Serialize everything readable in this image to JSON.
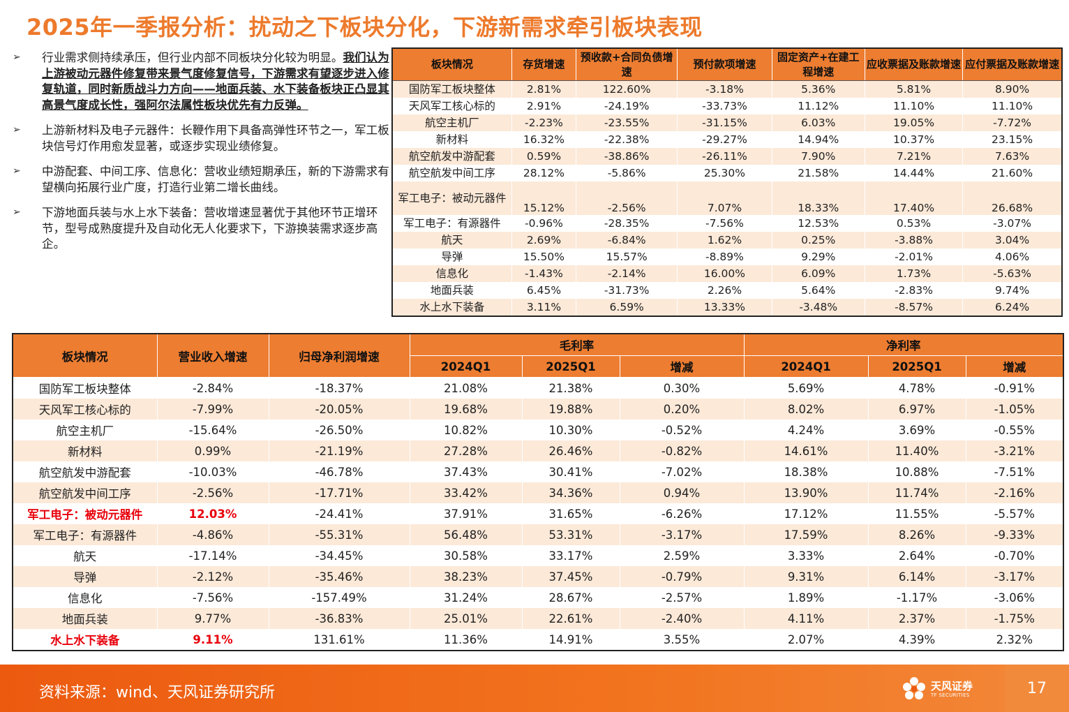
{
  "title": "2025年一季报分析：扰动之下板块分化，下游新需求牵引板块表现",
  "bullets": [
    {
      "marker": "➢",
      "text": "行业需求侧持续承压，但行业内部不同板块分化较为明显。",
      "bold": "我们认为上游被动元器件修复带来景气度修复信号，下游需求有望逐步进入修复轨道，同时新质战斗力方向——地面兵装、水下装备板块正凸显其高景气度成长性，强阿尔法属性板块优先有力反弹。"
    },
    {
      "marker": "➢",
      "text": "上游新材料及电子元器件：长鞭作用下具备高弹性环节之一，军工板块信号灯作用愈发显著，或逐步实现业绩修复。"
    },
    {
      "marker": "➢",
      "text": "中游配套、中间工序、信息化：营收业绩短期承压，新的下游需求有望横向拓展行业广度，打造行业第二增长曲线。"
    },
    {
      "marker": "➢",
      "text": "下游地面兵装与水上水下装备：营收增速显著优于其他环节正增环节，型号成熟度提升及自动化无人化要求下，下游换装需求逐步高企。"
    }
  ],
  "table1": {
    "headers": [
      "板块情况",
      "存货增速",
      "预收款+合同负债增速",
      "预付款项增速",
      "固定资产+在建工程增速",
      "应收票据及账款增速",
      "应付票据及账款增速"
    ],
    "rows": [
      [
        "国防军工板块整体",
        "2.81%",
        "122.60%",
        "-3.18%",
        "5.36%",
        "5.81%",
        "8.90%"
      ],
      [
        "天风军工核心标的",
        "2.91%",
        "-24.19%",
        "-33.73%",
        "11.12%",
        "11.10%",
        "11.10%"
      ],
      [
        "航空主机厂",
        "-2.23%",
        "-23.55%",
        "-31.15%",
        "6.03%",
        "19.05%",
        "-7.72%"
      ],
      [
        "新材料",
        "16.32%",
        "-22.38%",
        "-29.27%",
        "14.94%",
        "10.37%",
        "23.15%"
      ],
      [
        "航空航发中游配套",
        "0.59%",
        "-38.86%",
        "-26.11%",
        "7.90%",
        "7.21%",
        "7.63%"
      ],
      [
        "航空航发中间工序",
        "28.12%",
        "-5.86%",
        "25.30%",
        "21.58%",
        "14.44%",
        "21.60%"
      ],
      [
        "军工电子：被动元器件",
        "15.12%",
        "-2.56%",
        "7.07%",
        "18.33%",
        "17.40%",
        "26.68%"
      ],
      [
        "军工电子：有源器件",
        "-0.96%",
        "-28.35%",
        "-7.56%",
        "12.53%",
        "0.53%",
        "-3.07%"
      ],
      [
        "航天",
        "2.69%",
        "-6.84%",
        "1.62%",
        "0.25%",
        "-3.88%",
        "3.04%"
      ],
      [
        "导弹",
        "15.50%",
        "15.57%",
        "-8.89%",
        "9.29%",
        "-2.01%",
        "4.06%"
      ],
      [
        "信息化",
        "-1.43%",
        "-2.14%",
        "16.00%",
        "6.09%",
        "1.73%",
        "-5.63%"
      ],
      [
        "地面兵装",
        "6.45%",
        "-31.73%",
        "2.26%",
        "5.64%",
        "-2.83%",
        "9.74%"
      ],
      [
        "水上水下装备",
        "3.11%",
        "6.59%",
        "13.33%",
        "-3.48%",
        "-8.57%",
        "6.24%"
      ]
    ]
  },
  "table2": {
    "headers": {
      "sector": "板块情况",
      "revenue": "营业收入增速",
      "profit": "归母净利润增速",
      "gross_margin": "毛利率",
      "net_margin": "净利率",
      "sub": [
        "2024Q1",
        "2025Q1",
        "增减",
        "2024Q1",
        "2025Q1",
        "增减"
      ]
    },
    "rows": [
      [
        "国防军工板块整体",
        "-2.84%",
        "-18.37%",
        "21.08%",
        "21.38%",
        "0.30%",
        "5.69%",
        "4.78%",
        "-0.91%"
      ],
      [
        "天风军工核心标的",
        "-7.99%",
        "-20.05%",
        "19.68%",
        "19.88%",
        "0.20%",
        "8.02%",
        "6.97%",
        "-1.05%"
      ],
      [
        "航空主机厂",
        "-15.64%",
        "-26.50%",
        "10.82%",
        "10.30%",
        "-0.52%",
        "4.24%",
        "3.69%",
        "-0.55%"
      ],
      [
        "新材料",
        "0.99%",
        "-21.19%",
        "27.28%",
        "26.46%",
        "-0.82%",
        "14.61%",
        "11.40%",
        "-3.21%"
      ],
      [
        "航空航发中游配套",
        "-10.03%",
        "-46.78%",
        "37.43%",
        "30.41%",
        "-7.02%",
        "18.38%",
        "10.88%",
        "-7.51%"
      ],
      [
        "航空航发中间工序",
        "-2.56%",
        "-17.71%",
        "33.42%",
        "34.36%",
        "0.94%",
        "13.90%",
        "11.74%",
        "-2.16%"
      ],
      [
        "军工电子：被动元器件",
        "12.03%",
        "-24.41%",
        "37.91%",
        "31.65%",
        "-6.26%",
        "17.12%",
        "11.55%",
        "-5.57%"
      ],
      [
        "军工电子：有源器件",
        "-4.86%",
        "-55.31%",
        "56.48%",
        "53.31%",
        "-3.17%",
        "17.59%",
        "8.26%",
        "-9.33%"
      ],
      [
        "航天",
        "-17.14%",
        "-34.45%",
        "30.58%",
        "33.17%",
        "2.59%",
        "3.33%",
        "2.64%",
        "-0.70%"
      ],
      [
        "导弹",
        "-2.12%",
        "-35.46%",
        "38.23%",
        "37.45%",
        "-0.79%",
        "9.31%",
        "6.14%",
        "-3.17%"
      ],
      [
        "信息化",
        "-7.56%",
        "-157.49%",
        "31.24%",
        "28.67%",
        "-2.57%",
        "1.89%",
        "-1.17%",
        "-3.06%"
      ],
      [
        "地面兵装",
        "9.77%",
        "-36.83%",
        "25.01%",
        "22.61%",
        "-2.40%",
        "4.11%",
        "2.37%",
        "-1.75%"
      ],
      [
        "水上水下装备",
        "9.11%",
        "131.61%",
        "11.36%",
        "14.91%",
        "3.55%",
        "2.07%",
        "4.39%",
        "2.32%"
      ]
    ],
    "highlight_rows": [
      6,
      12
    ]
  },
  "footer": {
    "source": "资料来源：wind、天风证券研究所",
    "logo_text": "天风证券",
    "logo_sub": "TF SECURITIES",
    "page": "17"
  },
  "colors": {
    "accent": "#ed7a2c",
    "header_fill": "#ed7d31",
    "band_fill": "#fce9d8",
    "highlight": "#e8000b"
  }
}
